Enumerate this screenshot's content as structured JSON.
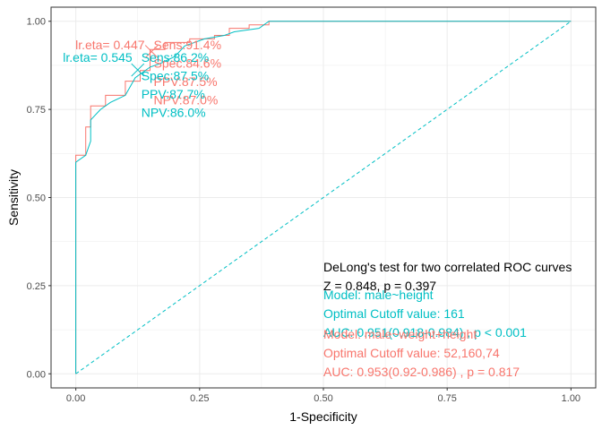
{
  "chart_data": {
    "type": "line",
    "xlabel": "1-Specificity",
    "ylabel": "Sensitivity",
    "xlim": [
      -0.05,
      1.05
    ],
    "ylim": [
      -0.04,
      1.04
    ],
    "x_ticks": [
      "0.00",
      "0.25",
      "0.50",
      "0.75",
      "1.00"
    ],
    "y_ticks": [
      "0.00",
      "0.25",
      "0.50",
      "0.75",
      "1.00"
    ],
    "grid": true,
    "colors": {
      "red": "#F8766D",
      "teal": "#00BFC4"
    },
    "series": [
      {
        "color": "#F8766D",
        "points": [
          [
            0,
            0
          ],
          [
            0,
            0.61
          ],
          [
            0,
            0.62
          ],
          [
            0.02,
            0.62
          ],
          [
            0.02,
            0.7
          ],
          [
            0.03,
            0.7
          ],
          [
            0.03,
            0.76
          ],
          [
            0.06,
            0.76
          ],
          [
            0.06,
            0.79
          ],
          [
            0.1,
            0.79
          ],
          [
            0.1,
            0.83
          ],
          [
            0.13,
            0.83
          ],
          [
            0.13,
            0.86
          ],
          [
            0.15,
            0.86
          ],
          [
            0.15,
            0.92
          ],
          [
            0.18,
            0.92
          ],
          [
            0.18,
            0.94
          ],
          [
            0.23,
            0.94
          ],
          [
            0.23,
            0.95
          ],
          [
            0.28,
            0.95
          ],
          [
            0.28,
            0.96
          ],
          [
            0.31,
            0.96
          ],
          [
            0.31,
            0.98
          ],
          [
            0.35,
            0.98
          ],
          [
            0.35,
            0.99
          ],
          [
            0.39,
            0.99
          ],
          [
            0.39,
            1
          ],
          [
            1,
            1
          ]
        ]
      },
      {
        "color": "#00BFC4",
        "points": [
          [
            0,
            0
          ],
          [
            0,
            0.6
          ],
          [
            0.02,
            0.62
          ],
          [
            0.03,
            0.66
          ],
          [
            0.03,
            0.72
          ],
          [
            0.05,
            0.75
          ],
          [
            0.07,
            0.77
          ],
          [
            0.1,
            0.79
          ],
          [
            0.12,
            0.84
          ],
          [
            0.15,
            0.87
          ],
          [
            0.17,
            0.88
          ],
          [
            0.2,
            0.9
          ],
          [
            0.22,
            0.93
          ],
          [
            0.26,
            0.95
          ],
          [
            0.3,
            0.96
          ],
          [
            0.32,
            0.97
          ],
          [
            0.37,
            0.98
          ],
          [
            0.39,
            1
          ],
          [
            1,
            1
          ]
        ]
      }
    ],
    "reference_line": {
      "points": [
        [
          0,
          0
        ],
        [
          1,
          1
        ]
      ],
      "color": "#00BFC4",
      "dashed": true
    },
    "cutoff_points": [
      {
        "x": 0.153,
        "y": 0.914,
        "color": "#F8766D"
      },
      {
        "x": 0.125,
        "y": 0.862,
        "color": "#00BFC4"
      }
    ],
    "annotations": {
      "red_label": {
        "x": 0.15,
        "y": 0.92,
        "color": "#F8766D",
        "left_text": "lr.eta= 0.447",
        "right_lines": [
          "Sens:91.4%",
          "Spec:84.6%",
          "PPV:87.5%",
          "NPV:87.0%"
        ]
      },
      "teal_label": {
        "x": 0.125,
        "y": 0.885,
        "color": "#00BFC4",
        "left_text": "lr.eta= 0.545",
        "right_lines": [
          "Sens:86.2%",
          "Spec:87.5%",
          "PPV:87.7%",
          "NPV:86.0%"
        ]
      },
      "delong": {
        "lines": [
          "DeLong's test for two correlated ROC curves",
          "Z = 0.848, p = 0.397"
        ],
        "color": "#000000"
      },
      "teal_model": {
        "color": "#00BFC4",
        "lines": [
          "Model: male~height",
          "Optimal Cutoff value:  161",
          " AUC:  0.951(0.918-0.984) , p < 0.001"
        ]
      },
      "red_model": {
        "color": "#F8766D",
        "lines": [
          "Model: male~weight+height",
          "Optimal Cutoff value:  52,160,74",
          " AUC:  0.953(0.92-0.986) , p = 0.817"
        ]
      }
    }
  }
}
